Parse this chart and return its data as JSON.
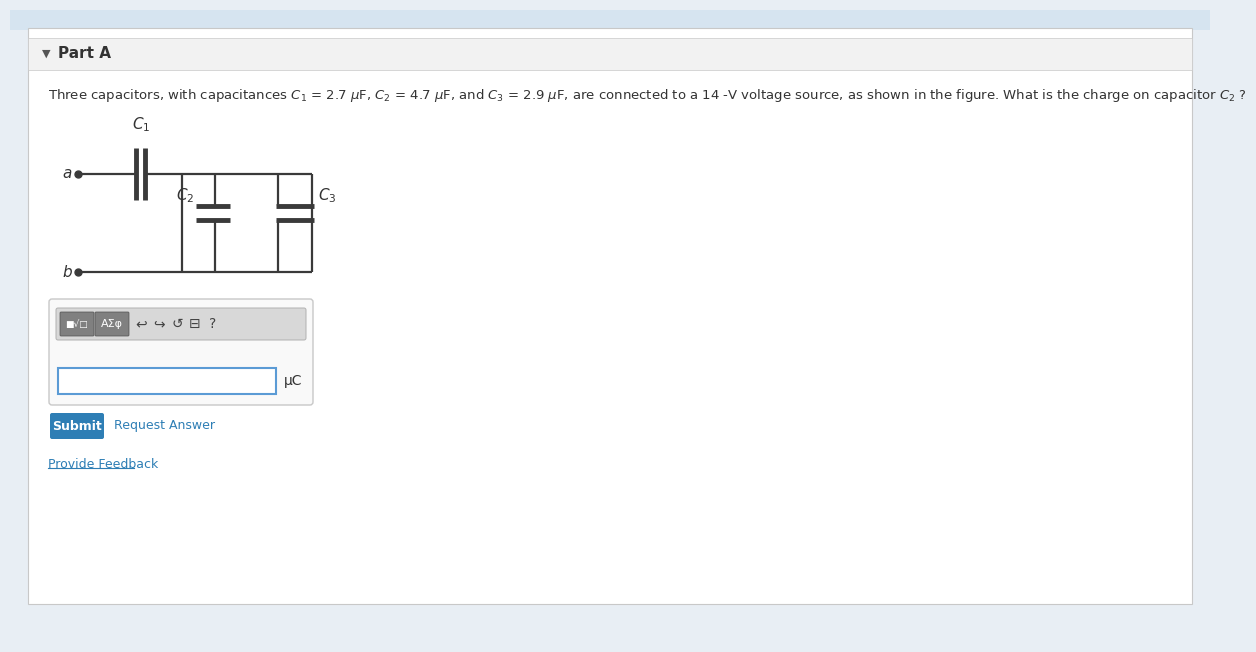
{
  "bg_color": "#e8eef4",
  "panel_bg": "#ffffff",
  "header_section_bg": "#f2f2f2",
  "top_banner_color": "#d6e4f0",
  "header_text": "Part A",
  "question_text": "Three capacitors, with capacitances $C_1$ = 2.7 $\\mu$F, $C_2$ = 4.7 $\\mu$F, and $C_3$ = 2.9 $\\mu$F, are connected to a 14 -V voltage source, as shown in the figure. What is the charge on capacitor $C_2$ ?",
  "submit_color": "#2e7eb5",
  "submit_text": "Submit",
  "request_text": "Request Answer",
  "feedback_text": "Provide Feedback",
  "uc_label": "μC",
  "line_color": "#3a3a3a",
  "text_color": "#333333",
  "border_color": "#c8c8c8",
  "toolbar_bg": "#d8d8d8",
  "btn_bg": "#808080",
  "input_border": "#5b9bd5"
}
